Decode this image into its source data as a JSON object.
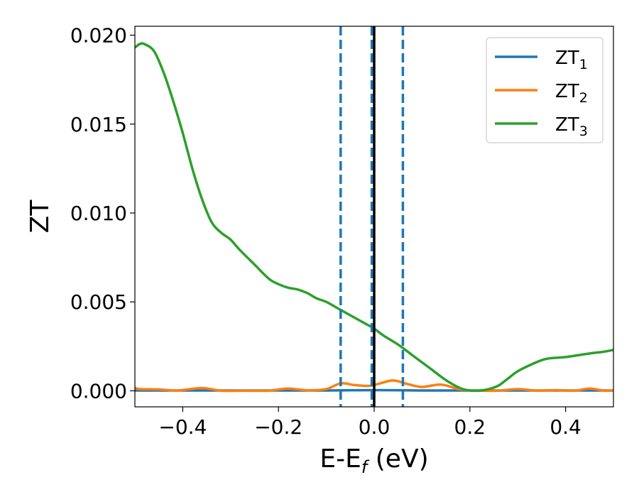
{
  "chart_data": {
    "type": "line",
    "xlabel": "E-E",
    "xlabel_sub": "f",
    "xlabel_suffix": " (eV)",
    "ylabel": "ZT",
    "xlim": [
      -0.5,
      0.5
    ],
    "ylim": [
      -0.0009,
      0.0205
    ],
    "xticks": [
      -0.4,
      -0.2,
      0.0,
      0.2,
      0.4
    ],
    "xtick_labels": [
      "−0.4",
      "−0.2",
      "0.0",
      "0.2",
      "0.4"
    ],
    "yticks": [
      0.0,
      0.005,
      0.01,
      0.015,
      0.02
    ],
    "ytick_labels": [
      "0.000",
      "0.005",
      "0.010",
      "0.015",
      "0.020"
    ],
    "grid": false,
    "legend_position": "top-right",
    "vlines": [
      {
        "x": -0.07,
        "style": "dashed",
        "color": "#1f77b4"
      },
      {
        "x": -0.005,
        "style": "dashed",
        "color": "#1f77b4"
      },
      {
        "x": 0.0,
        "style": "solid",
        "color": "#000000"
      },
      {
        "x": 0.06,
        "style": "dashed",
        "color": "#1f77b4"
      }
    ],
    "series": [
      {
        "name": "ZT",
        "subscript": "1",
        "color": "#1f77b4",
        "x": [
          -0.5,
          -0.4,
          -0.3,
          -0.2,
          -0.1,
          0.0,
          0.1,
          0.2,
          0.3,
          0.4,
          0.5
        ],
        "y": [
          2e-05,
          2e-05,
          2e-05,
          2e-05,
          2e-05,
          4e-05,
          2e-05,
          2e-05,
          2e-05,
          2e-05,
          2e-05
        ]
      },
      {
        "name": "ZT",
        "subscript": "2",
        "color": "#ff7f0e",
        "x": [
          -0.5,
          -0.49,
          -0.45,
          -0.41,
          -0.36,
          -0.32,
          -0.27,
          -0.22,
          -0.18,
          -0.14,
          -0.1,
          -0.07,
          -0.04,
          -0.01,
          0.01,
          0.04,
          0.07,
          0.1,
          0.14,
          0.18,
          0.22,
          0.26,
          0.3,
          0.34,
          0.38,
          0.42,
          0.45,
          0.48,
          0.5
        ],
        "y": [
          0.00018,
          0.0001,
          8e-05,
          2e-05,
          0.00016,
          1e-05,
          1e-05,
          1e-05,
          0.00013,
          3e-05,
          0.0001,
          0.00042,
          0.00032,
          0.00028,
          0.0004,
          0.00058,
          0.00038,
          0.00022,
          0.00035,
          8e-05,
          1e-05,
          1e-05,
          0.0001,
          1e-05,
          4e-05,
          1e-05,
          0.00013,
          1e-05,
          2e-05
        ]
      },
      {
        "name": "ZT",
        "subscript": "3",
        "color": "#2ca02c",
        "x": [
          -0.5,
          -0.49,
          -0.48,
          -0.46,
          -0.44,
          -0.42,
          -0.4,
          -0.38,
          -0.36,
          -0.34,
          -0.32,
          -0.3,
          -0.28,
          -0.25,
          -0.22,
          -0.2,
          -0.18,
          -0.16,
          -0.14,
          -0.12,
          -0.1,
          -0.08,
          -0.06,
          -0.04,
          -0.02,
          0.0,
          0.02,
          0.05,
          0.08,
          0.1,
          0.12,
          0.15,
          0.18,
          0.2,
          0.22,
          0.24,
          0.26,
          0.28,
          0.3,
          0.33,
          0.36,
          0.4,
          0.45,
          0.48,
          0.5
        ],
        "y": [
          0.0193,
          0.0195,
          0.0195,
          0.0191,
          0.0179,
          0.0163,
          0.0145,
          0.0125,
          0.0108,
          0.0095,
          0.0089,
          0.0085,
          0.0079,
          0.0071,
          0.0063,
          0.006,
          0.0058,
          0.0057,
          0.0055,
          0.0052,
          0.005,
          0.0047,
          0.0044,
          0.0041,
          0.0038,
          0.0035,
          0.0031,
          0.0026,
          0.002,
          0.0016,
          0.0012,
          0.0006,
          0.00015,
          2e-05,
          1e-05,
          0.0001,
          0.0003,
          0.0007,
          0.0011,
          0.0015,
          0.0018,
          0.0019,
          0.0021,
          0.0022,
          0.0023
        ]
      }
    ]
  }
}
